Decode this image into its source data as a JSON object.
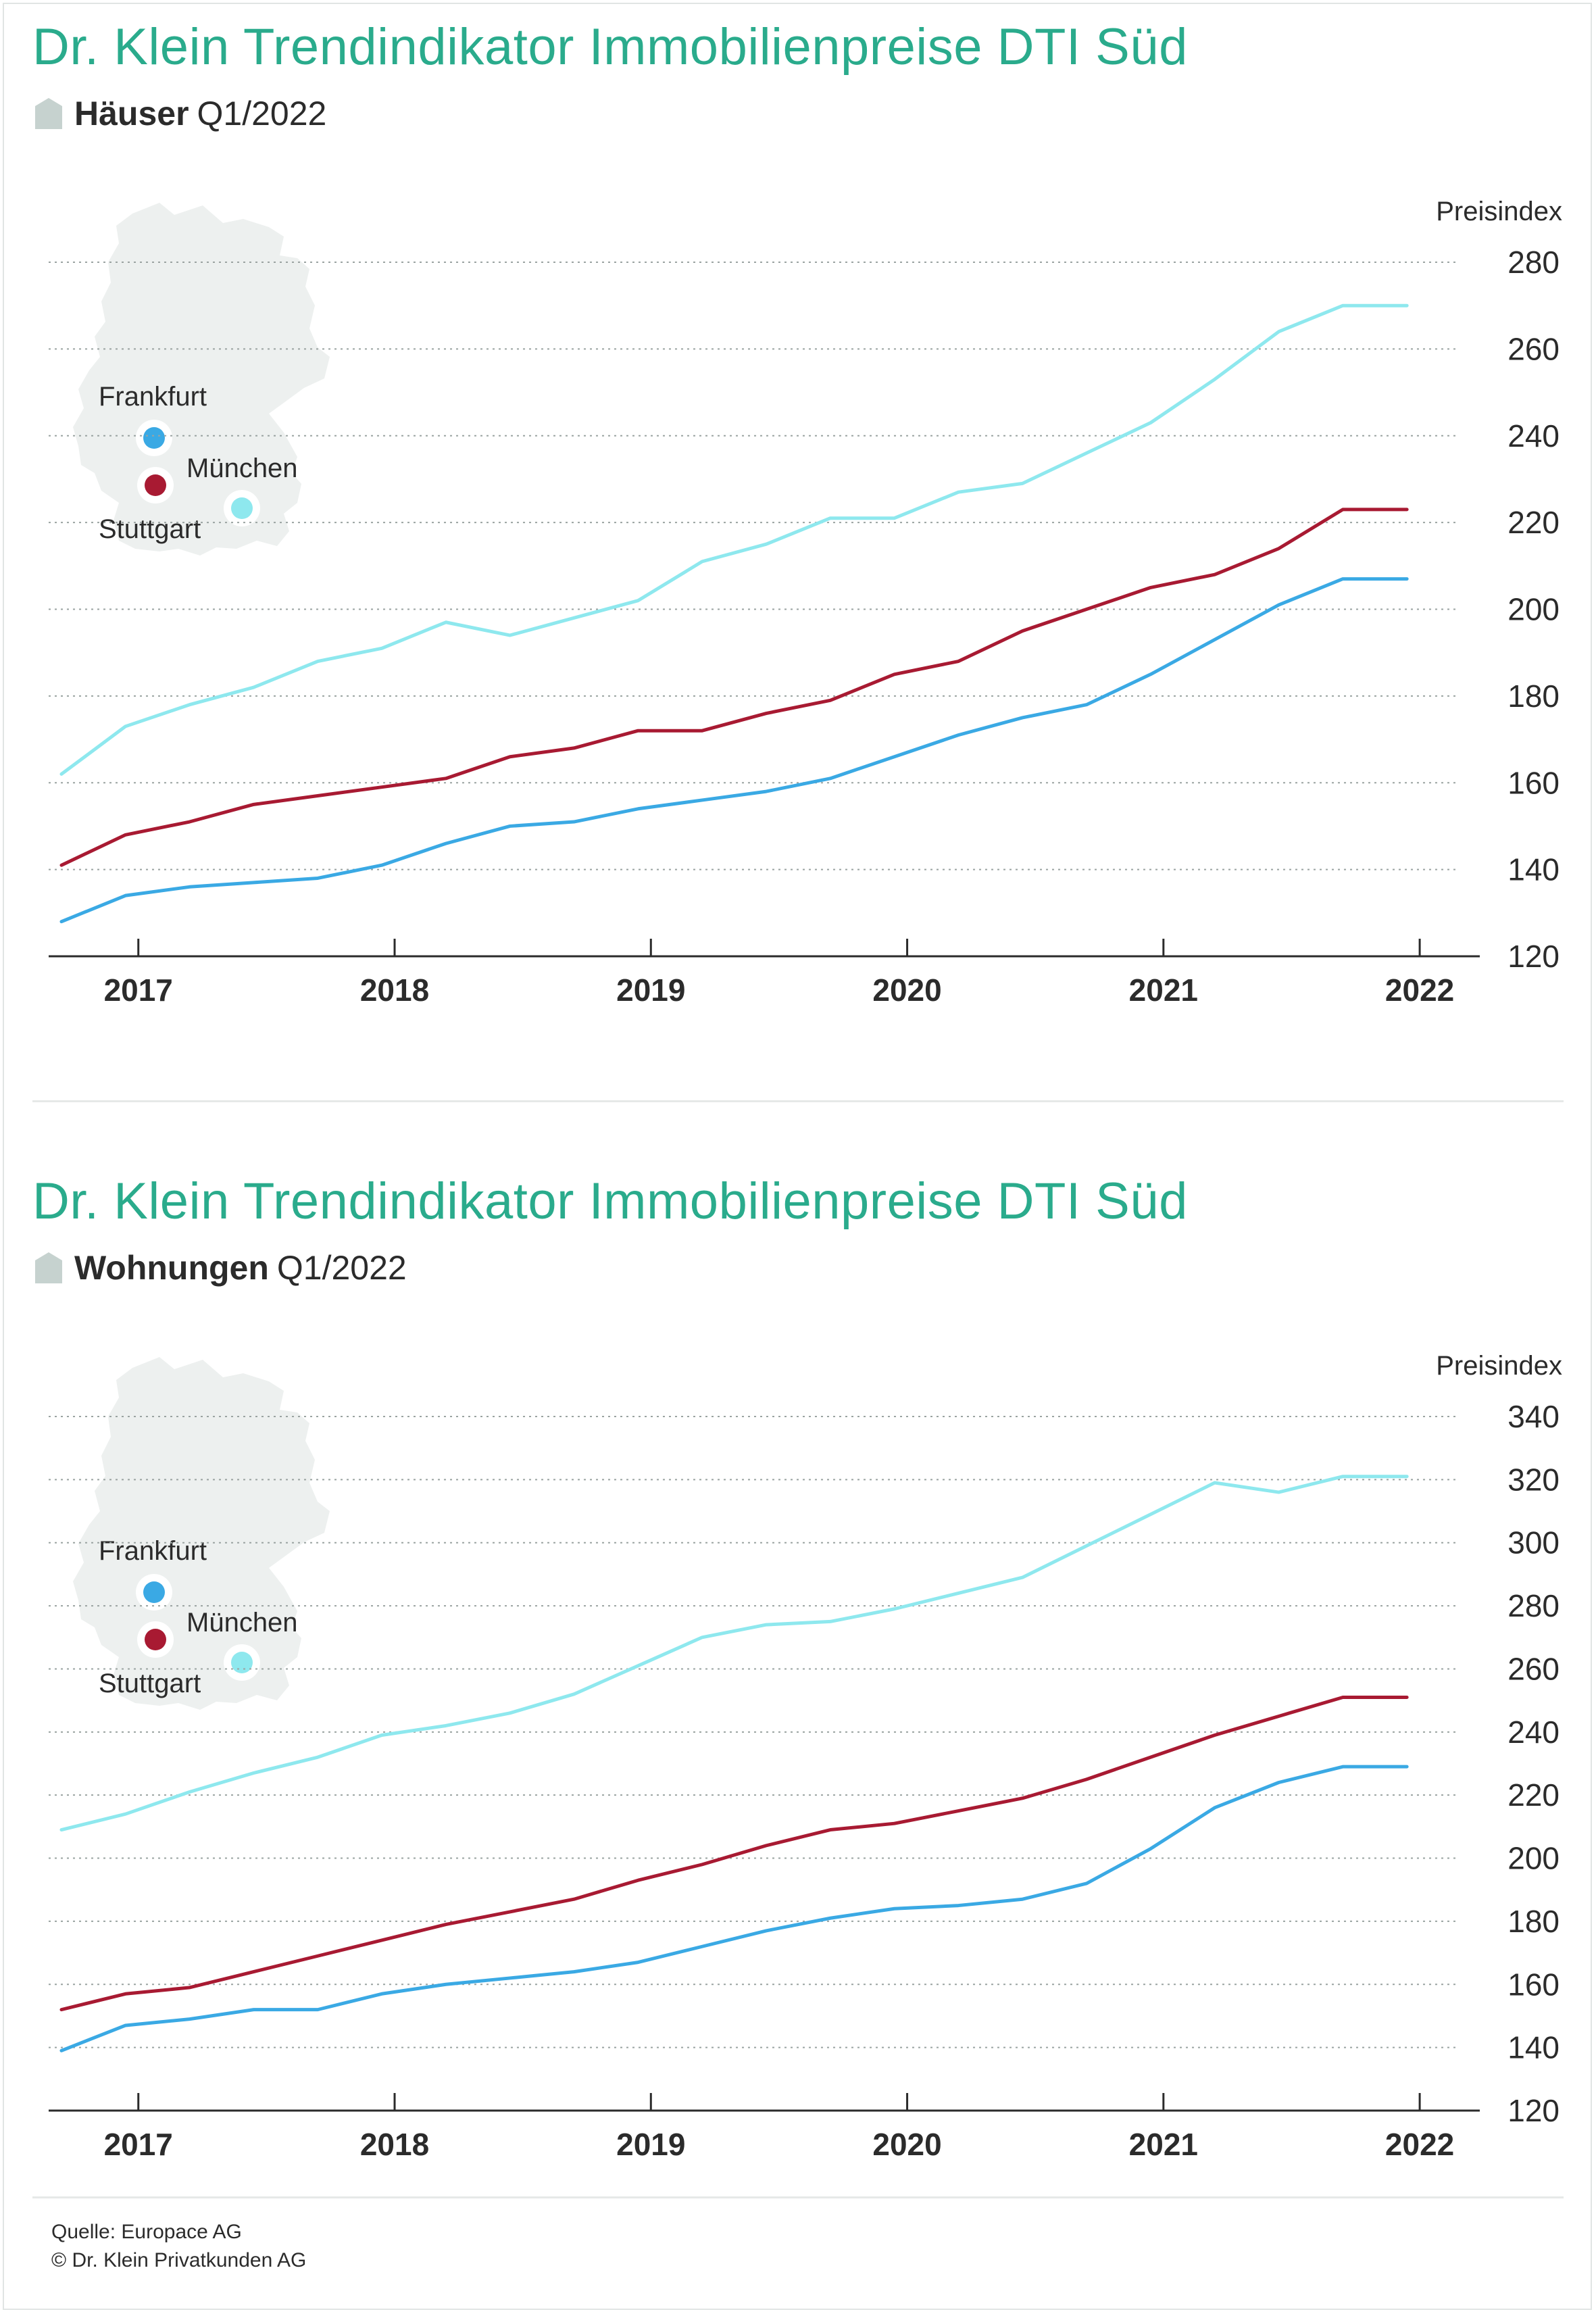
{
  "chart_data": [
    {
      "type": "line",
      "title": "Dr. Klein Trendindikator Immobilienpreise DTI Süd",
      "subtitle_type": "Häuser",
      "subtitle_period": "Q1/2022",
      "ylabel": "Preisindex",
      "ylim": [
        120,
        280
      ],
      "yticks": [
        120,
        140,
        160,
        180,
        200,
        220,
        240,
        260,
        280
      ],
      "xlabels": [
        "2017",
        "2018",
        "2019",
        "2020",
        "2021",
        "2022"
      ],
      "grid": true,
      "legend": [
        {
          "name": "Frankfurt",
          "color": "#3aa9e4"
        },
        {
          "name": "München",
          "color": "#a81a32"
        },
        {
          "name": "Stuttgart",
          "color": "#8ee8ee"
        }
      ],
      "x": [
        2016.75,
        2017.0,
        2017.25,
        2017.5,
        2017.75,
        2018.0,
        2018.25,
        2018.5,
        2018.75,
        2019.0,
        2019.25,
        2019.5,
        2019.75,
        2020.0,
        2020.25,
        2020.5,
        2020.75,
        2021.0,
        2021.25,
        2021.5,
        2021.75,
        2022.0
      ],
      "series": [
        {
          "name": "Stuttgart",
          "color": "#8ee8ee",
          "values": [
            162,
            173,
            178,
            182,
            188,
            191,
            197,
            194,
            198,
            202,
            211,
            215,
            221,
            221,
            227,
            229,
            236,
            243,
            253,
            264,
            270,
            270
          ]
        },
        {
          "name": "München",
          "color": "#a81a32",
          "values": [
            141,
            148,
            151,
            155,
            157,
            159,
            161,
            166,
            168,
            172,
            172,
            176,
            179,
            185,
            188,
            195,
            200,
            205,
            208,
            214,
            223,
            223
          ]
        },
        {
          "name": "Frankfurt",
          "color": "#3aa9e4",
          "values": [
            128,
            134,
            136,
            137,
            138,
            141,
            146,
            150,
            151,
            154,
            156,
            158,
            161,
            166,
            171,
            175,
            178,
            185,
            193,
            201,
            207,
            207
          ]
        }
      ]
    },
    {
      "type": "line",
      "title": "Dr. Klein Trendindikator Immobilienpreise DTI Süd",
      "subtitle_type": "Wohnungen",
      "subtitle_period": "Q1/2022",
      "ylabel": "Preisindex",
      "ylim": [
        120,
        340
      ],
      "yticks": [
        120,
        140,
        160,
        180,
        200,
        220,
        240,
        260,
        280,
        300,
        320,
        340
      ],
      "xlabels": [
        "2017",
        "2018",
        "2019",
        "2020",
        "2021",
        "2022"
      ],
      "grid": true,
      "legend": [
        {
          "name": "Frankfurt",
          "color": "#3aa9e4"
        },
        {
          "name": "München",
          "color": "#a81a32"
        },
        {
          "name": "Stuttgart",
          "color": "#8ee8ee"
        }
      ],
      "x": [
        2016.75,
        2017.0,
        2017.25,
        2017.5,
        2017.75,
        2018.0,
        2018.25,
        2018.5,
        2018.75,
        2019.0,
        2019.25,
        2019.5,
        2019.75,
        2020.0,
        2020.25,
        2020.5,
        2020.75,
        2021.0,
        2021.25,
        2021.5,
        2021.75,
        2022.0
      ],
      "series": [
        {
          "name": "Stuttgart",
          "color": "#8ee8ee",
          "values": [
            209,
            214,
            221,
            227,
            232,
            239,
            242,
            246,
            252,
            261,
            270,
            274,
            275,
            279,
            284,
            289,
            299,
            309,
            319,
            316,
            321,
            321
          ]
        },
        {
          "name": "München",
          "color": "#a81a32",
          "values": [
            152,
            157,
            159,
            164,
            169,
            174,
            179,
            183,
            187,
            193,
            198,
            204,
            209,
            211,
            215,
            219,
            225,
            232,
            239,
            245,
            251,
            251
          ]
        },
        {
          "name": "Frankfurt",
          "color": "#3aa9e4",
          "values": [
            139,
            147,
            149,
            152,
            152,
            157,
            160,
            162,
            164,
            167,
            172,
            177,
            181,
            184,
            185,
            187,
            192,
            203,
            216,
            224,
            229,
            229
          ]
        }
      ]
    }
  ],
  "footer": {
    "source": "Quelle: Europace AG",
    "copyright": "© Dr. Klein Privatkunden AG"
  }
}
